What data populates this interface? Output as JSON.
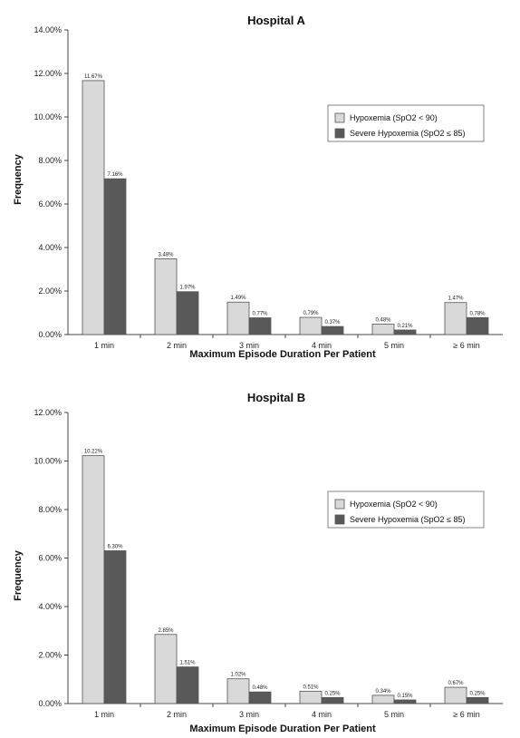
{
  "chart_data": [
    {
      "type": "bar",
      "title": "Hospital A",
      "xlabel": "Maximum Episode Duration Per Patient",
      "ylabel": "Frequency",
      "ylim": [
        0,
        14
      ],
      "yticks": [
        "0.00%",
        "2.00%",
        "4.00%",
        "6.00%",
        "8.00%",
        "10.00%",
        "12.00%",
        "14.00%"
      ],
      "categories": [
        "1 min",
        "2 min",
        "3 min",
        "4 min",
        "5 min",
        "≥ 6 min"
      ],
      "legend_position": "right",
      "series": [
        {
          "name": "Hypoxemia (SpO2 < 90)",
          "color": "#d9d9d9",
          "values": [
            11.67,
            3.48,
            1.49,
            0.79,
            0.48,
            1.47
          ],
          "labels": [
            "11.67%",
            "3.48%",
            "1.49%",
            "0.79%",
            "0.48%",
            "1.47%"
          ]
        },
        {
          "name": "Severe Hypoxemia (SpO2 ≤ 85)",
          "color": "#595959",
          "values": [
            7.16,
            1.97,
            0.77,
            0.37,
            0.21,
            0.78
          ],
          "labels": [
            "7.16%",
            "1.97%",
            "0.77%",
            "0.37%",
            "0.21%",
            "0.78%"
          ]
        }
      ]
    },
    {
      "type": "bar",
      "title": "Hospital B",
      "xlabel": "Maximum Episode Duration Per Patient",
      "ylabel": "Frequency",
      "ylim": [
        0,
        12
      ],
      "yticks": [
        "0.00%",
        "2.00%",
        "4.00%",
        "6.00%",
        "8.00%",
        "10.00%",
        "12.00%"
      ],
      "categories": [
        "1 min",
        "2 min",
        "3 min",
        "4 min",
        "5 min",
        "≥ 6 min"
      ],
      "legend_position": "right",
      "series": [
        {
          "name": "Hypoxemia (SpO2 < 90)",
          "color": "#d9d9d9",
          "values": [
            10.22,
            2.85,
            1.02,
            0.51,
            0.34,
            0.67
          ],
          "labels": [
            "10.22%",
            "2.85%",
            "1.02%",
            "0.51%",
            "0.34%",
            "0.67%"
          ]
        },
        {
          "name": "Severe Hypoxemia (SpO2 ≤ 85)",
          "color": "#595959",
          "values": [
            6.3,
            1.51,
            0.48,
            0.25,
            0.15,
            0.25
          ],
          "labels": [
            "6.30%",
            "1.51%",
            "0.48%",
            "0.25%",
            "0.15%",
            "0.25%"
          ]
        }
      ]
    }
  ]
}
